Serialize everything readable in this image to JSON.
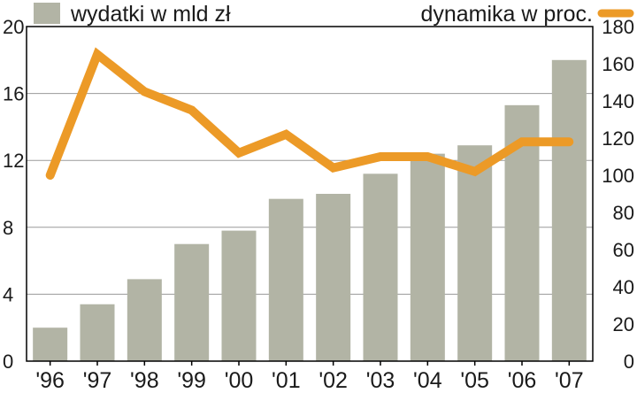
{
  "chart_data": {
    "type": "bar",
    "categories": [
      "'96",
      "'97",
      "'98",
      "'99",
      "'00",
      "'01",
      "'02",
      "'03",
      "'04",
      "'05",
      "'06",
      "'07"
    ],
    "series": [
      {
        "name": "wydatki w mld zł",
        "type": "bar",
        "axis": "left",
        "color": "#b2b4a5",
        "values": [
          2.0,
          3.4,
          4.9,
          7.0,
          7.8,
          9.7,
          10.0,
          11.2,
          12.4,
          12.9,
          15.3,
          18.0
        ]
      },
      {
        "name": "dynamika w proc.",
        "type": "line",
        "axis": "right",
        "color": "#ec9a27",
        "values": [
          100,
          165,
          145,
          135,
          112,
          122,
          104,
          110,
          110,
          102,
          118,
          118
        ]
      }
    ],
    "y_left": {
      "min": 0,
      "max": 20,
      "ticks": [
        "0",
        "4",
        "8",
        "12",
        "16",
        "20"
      ]
    },
    "y_right": {
      "min": 0,
      "max": 180,
      "ticks": [
        "0",
        "20",
        "40",
        "60",
        "80",
        "100",
        "120",
        "140",
        "160",
        "180"
      ]
    },
    "grid": "horizontal",
    "legend": {
      "placement": "top"
    }
  }
}
